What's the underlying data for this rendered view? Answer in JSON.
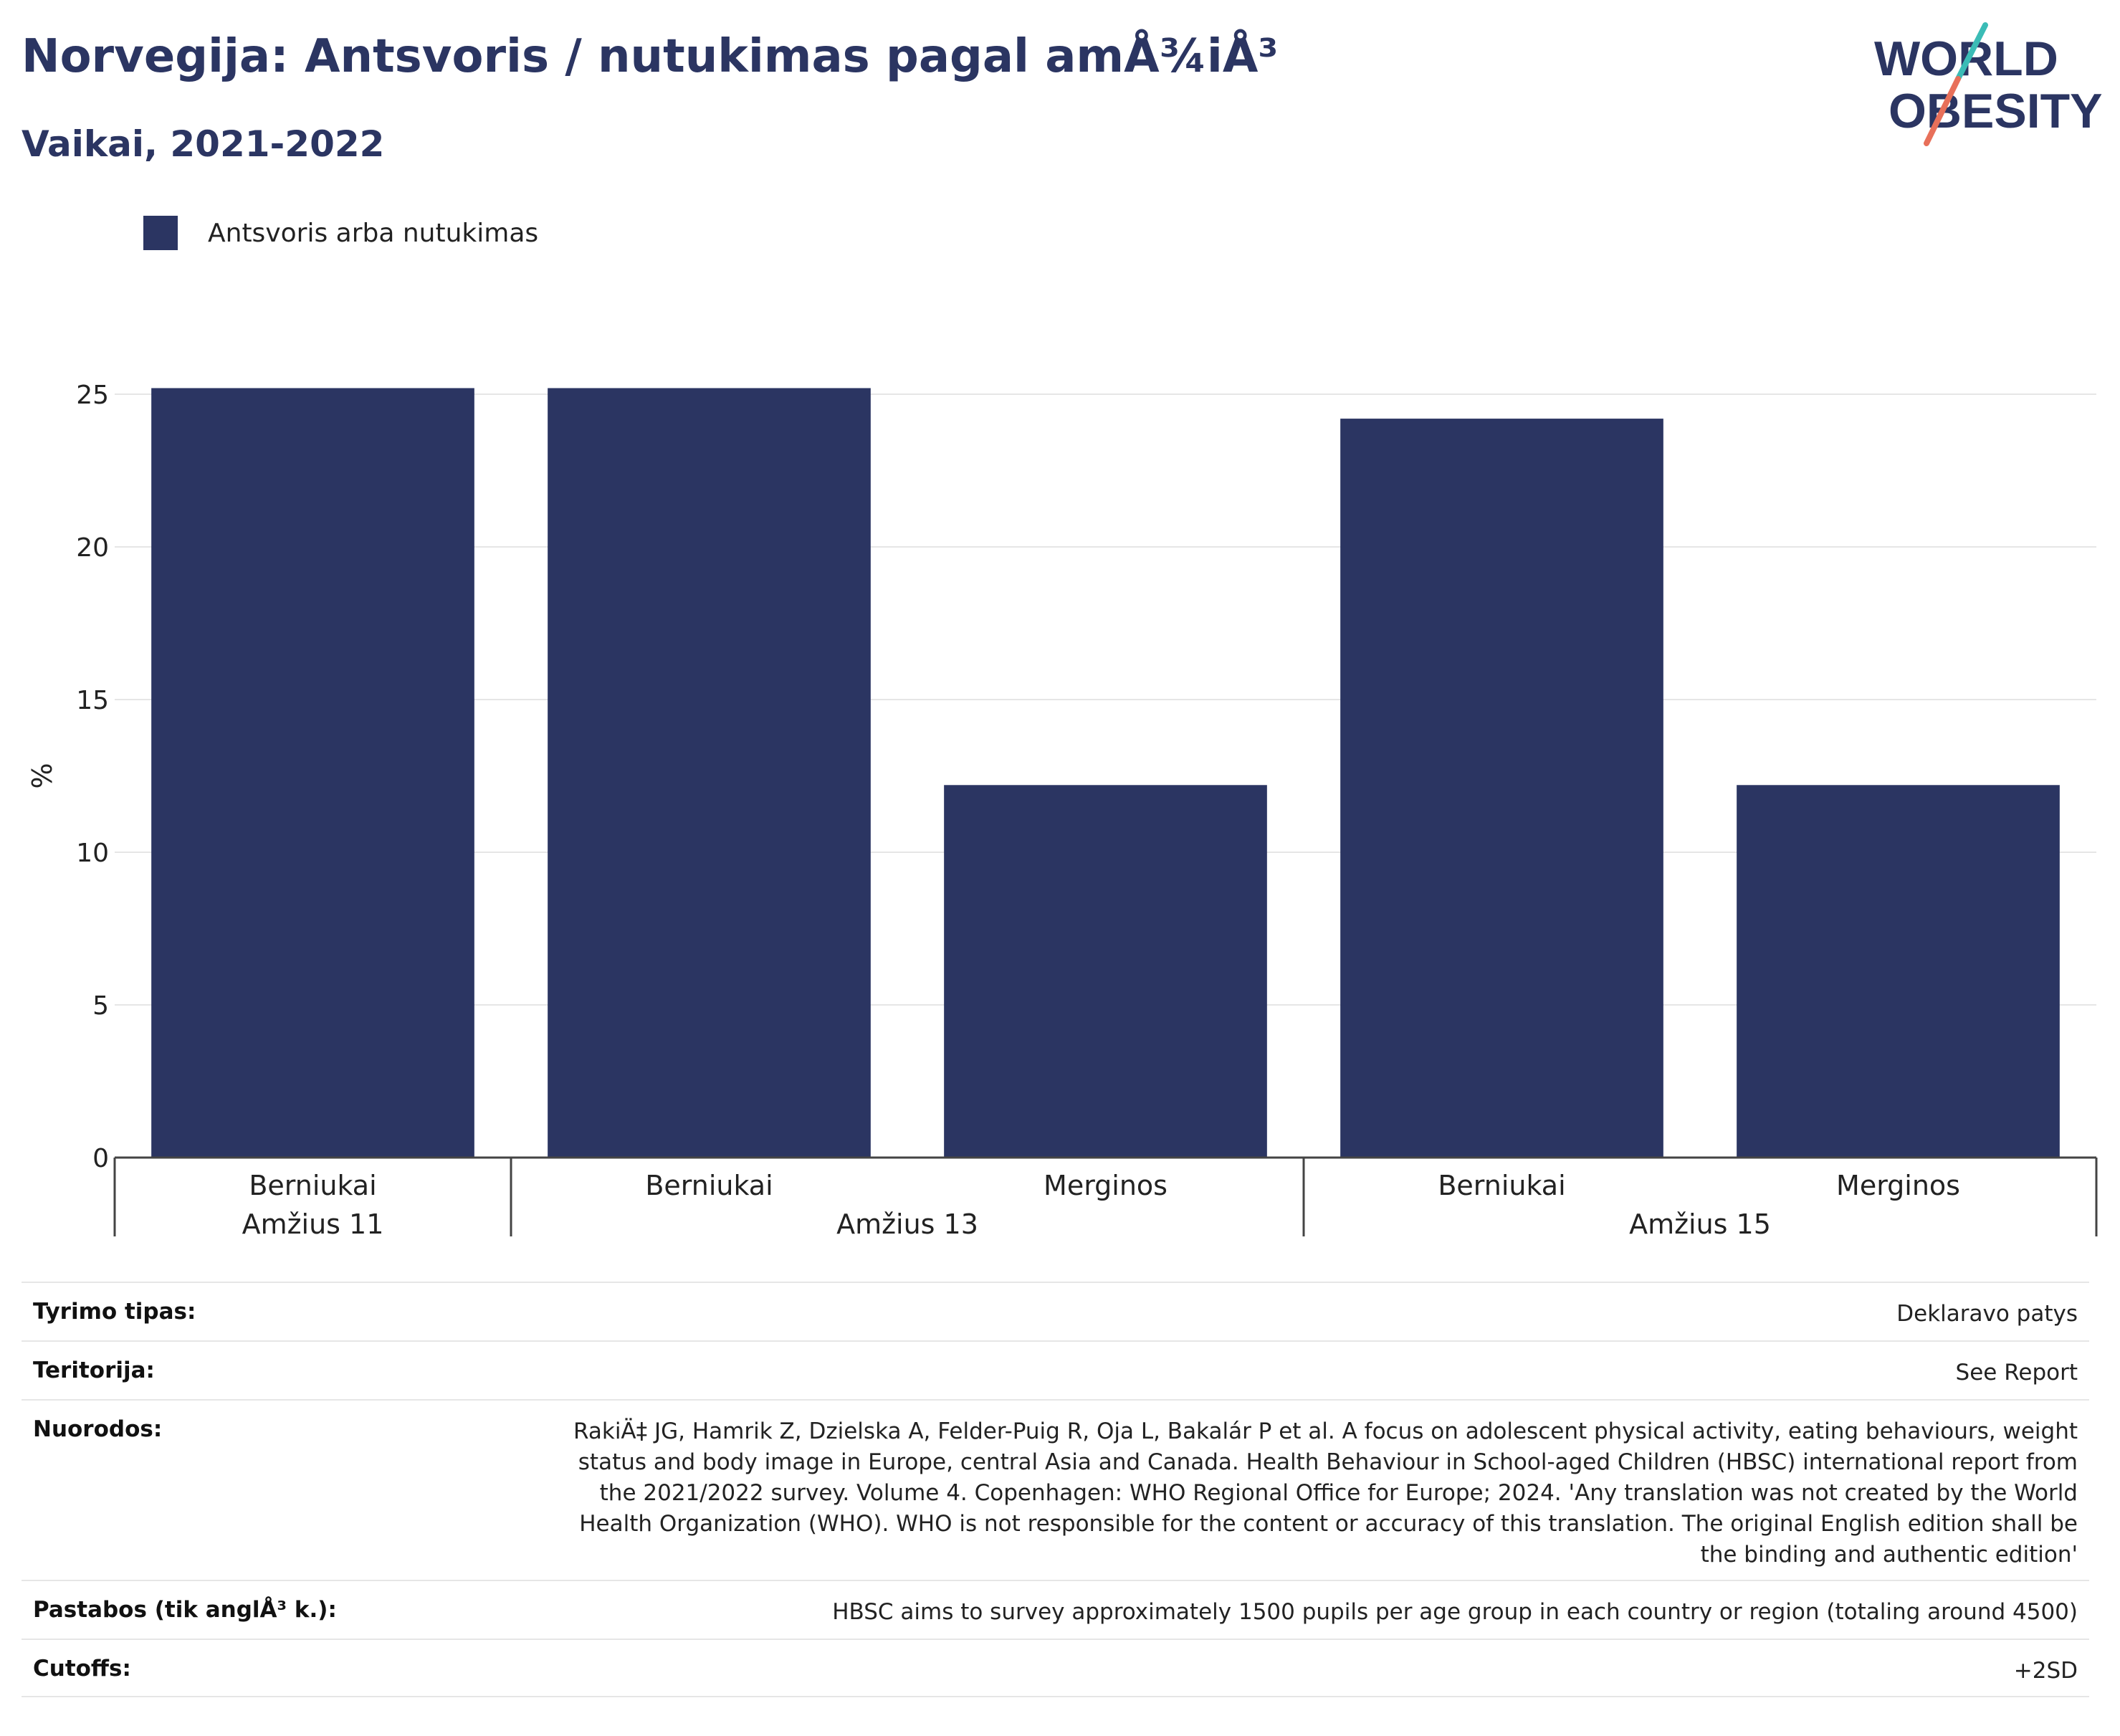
{
  "header": {
    "title": "Norvegija: Antsvoris / nutukimas pagal amÅ¾iÅ³",
    "subtitle": "Vaikai, 2021-2022"
  },
  "logo": {
    "line1": "WORLD",
    "line2": "OBESITY",
    "icon": "world-obesity-logo"
  },
  "colors": {
    "bar": "#2b3562",
    "title": "#2b3562",
    "logo_teal": "#3bbcb6",
    "logo_coral": "#e8705a",
    "grid": "#e6e6e6"
  },
  "chart_data": {
    "type": "bar",
    "legend": {
      "label": "Antsvoris arba nutukimas",
      "placement": "top-left"
    },
    "ylabel": "%",
    "ylim": [
      0,
      25
    ],
    "yticks": [
      0,
      5,
      10,
      15,
      20,
      25
    ],
    "grid": true,
    "categories": [
      "Berniukai",
      "Berniukai",
      "Merginos",
      "Berniukai",
      "Merginos"
    ],
    "groups": [
      {
        "label": "Amžius 11",
        "count": 1
      },
      {
        "label": "Amžius 13",
        "count": 2
      },
      {
        "label": "Amžius 15",
        "count": 2
      }
    ],
    "series": [
      {
        "name": "Antsvoris arba nutukimas",
        "values": [
          25.2,
          25.2,
          12.2,
          24.2,
          12.2
        ]
      }
    ]
  },
  "info": [
    {
      "label": "Tyrimo tipas:",
      "value": "Deklaravo patys"
    },
    {
      "label": "Teritorija:",
      "value": "See Report"
    },
    {
      "label": "Nuorodos:",
      "lines": [
        "RakiÄ‡ JG, Hamrik Z, Dzielska A, Felder-Puig R, Oja L, Bakalár P et al. A focus on adolescent physical activity, eating behaviours, weight",
        "status and body image in Europe, central Asia and Canada. Health Behaviour in School-aged Children (HBSC) international report from",
        "the 2021/2022 survey. Volume 4. Copenhagen: WHO Regional Office for Europe; 2024. 'Any translation was not created by the World",
        "Health Organization (WHO). WHO is not responsible for the content or accuracy of this translation. The original English edition shall be",
        "the binding and authentic edition'"
      ]
    },
    {
      "label": "Pastabos (tik anglÅ³ k.):",
      "value": "HBSC aims to survey approximately 1500 pupils per age group in each country or region (totaling around 4500)"
    },
    {
      "label": "Cutoffs:",
      "value": "+2SD"
    }
  ]
}
